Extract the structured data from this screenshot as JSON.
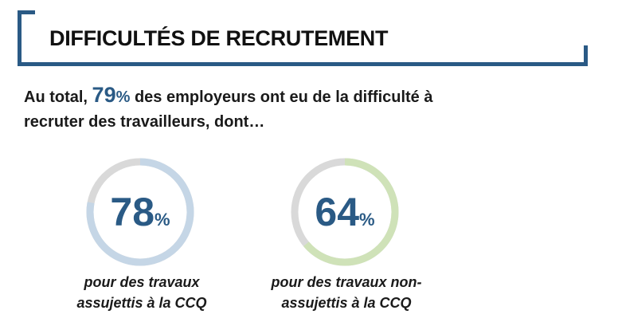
{
  "header": {
    "title": "DIFFICULTÉS DE RECRUTEMENT"
  },
  "intro": {
    "prefix": "Au total, ",
    "highlight_value": "79",
    "highlight_unit": "%",
    "suffix_line1": " des employeurs ont eu de la difficulté à",
    "line2": "recruter des travailleurs, dont…"
  },
  "chart_data": {
    "type": "donut",
    "series": [
      {
        "value": 78,
        "value_label": "78",
        "unit": "%",
        "caption_line1": "pour des travaux",
        "caption_line2": "assujettis à la CCQ",
        "color": "#c5d6e6"
      },
      {
        "value": 64,
        "value_label": "64",
        "unit": "%",
        "caption_line1": "pour des travaux non-",
        "caption_line2": "assujettis à la CCQ",
        "color": "#cfe2b8"
      }
    ],
    "track_color": "#d9d9d9",
    "value_color": "#2a5a85",
    "max": 100
  }
}
